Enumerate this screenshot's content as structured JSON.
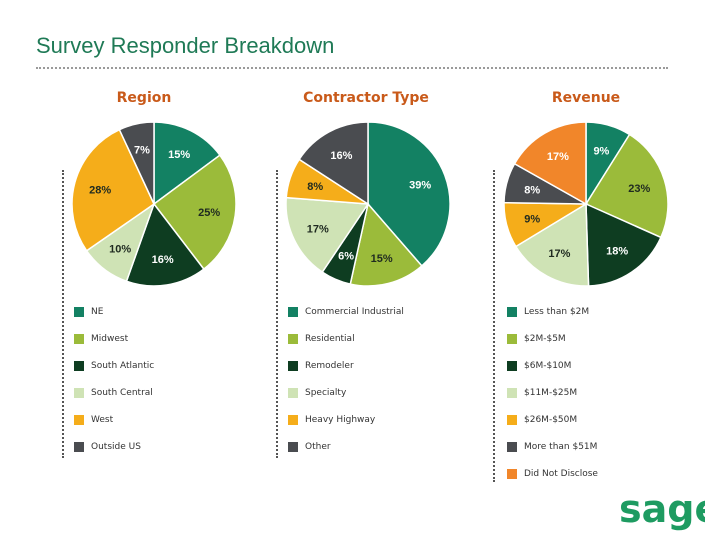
{
  "slide": {
    "title": "Survey Responder Breakdown",
    "brand": "sage"
  },
  "colors": {
    "teal": "#138163",
    "lime": "#9bbb3a",
    "dark_green": "#0e3d21",
    "pale_green": "#cfe3b5",
    "amber": "#f5ad1a",
    "charcoal": "#4a4c50",
    "orange": "#f1862a",
    "title_orange": "#c95a1a",
    "title_green": "#1f7a56"
  },
  "chart_data": [
    {
      "type": "pie",
      "title": "Region",
      "slices": [
        {
          "name": "NE",
          "value": 15,
          "label": "15%",
          "color": "#138163"
        },
        {
          "name": "Midwest",
          "value": 25,
          "label": "25%",
          "color": "#9bbb3a"
        },
        {
          "name": "South Atlantic",
          "value": 16,
          "label": "16%",
          "color": "#0e3d21"
        },
        {
          "name": "South Central",
          "value": 10,
          "label": "10%",
          "color": "#cfe3b5"
        },
        {
          "name": "West",
          "value": 28,
          "label": "28%",
          "color": "#f5ad1a"
        },
        {
          "name": "Outside US",
          "value": 7,
          "label": "7%",
          "color": "#4a4c50"
        }
      ],
      "legend": [
        "NE",
        "Midwest",
        "South Atlantic",
        "South Central",
        "West",
        "Outside US"
      ]
    },
    {
      "type": "pie",
      "title": "Contractor Type",
      "slices": [
        {
          "name": "Commercial Industrial",
          "value": 39,
          "label": "39%",
          "color": "#138163"
        },
        {
          "name": "Residential",
          "value": 15,
          "label": "15%",
          "color": "#9bbb3a"
        },
        {
          "name": "Remodeler",
          "value": 6,
          "label": "6%",
          "color": "#0e3d21"
        },
        {
          "name": "Specialty",
          "value": 17,
          "label": "17%",
          "color": "#cfe3b5"
        },
        {
          "name": "Heavy Highway",
          "value": 8,
          "label": "8%",
          "color": "#f5ad1a"
        },
        {
          "name": "Other",
          "value": 16,
          "label": "16%",
          "color": "#4a4c50"
        }
      ],
      "legend": [
        "Commercial Industrial",
        "Residential",
        "Remodeler",
        "Specialty",
        "Heavy Highway",
        "Other"
      ]
    },
    {
      "type": "pie",
      "title": "Revenue",
      "slices": [
        {
          "name": "Less than $2M",
          "value": 9,
          "label": "9%",
          "color": "#138163"
        },
        {
          "name": "$2M-$5M",
          "value": 23,
          "label": "23%",
          "color": "#9bbb3a"
        },
        {
          "name": "$6M-$10M",
          "value": 18,
          "label": "18%",
          "color": "#0e3d21"
        },
        {
          "name": "$11M-$25M",
          "value": 17,
          "label": "17%",
          "color": "#cfe3b5"
        },
        {
          "name": "$26M-$50M",
          "value": 9,
          "label": "9%",
          "color": "#f5ad1a"
        },
        {
          "name": "More than $51M",
          "value": 8,
          "label": "8%",
          "color": "#4a4c50"
        },
        {
          "name": "Did Not Disclose",
          "value": 17,
          "label": "17%",
          "color": "#f1862a"
        }
      ],
      "legend": [
        "Less than $2M",
        "$2M-$5M",
        "$6M-$10M",
        "$11M-$25M",
        "$26M-$50M",
        "More than $51M",
        "Did Not Disclose"
      ]
    }
  ]
}
